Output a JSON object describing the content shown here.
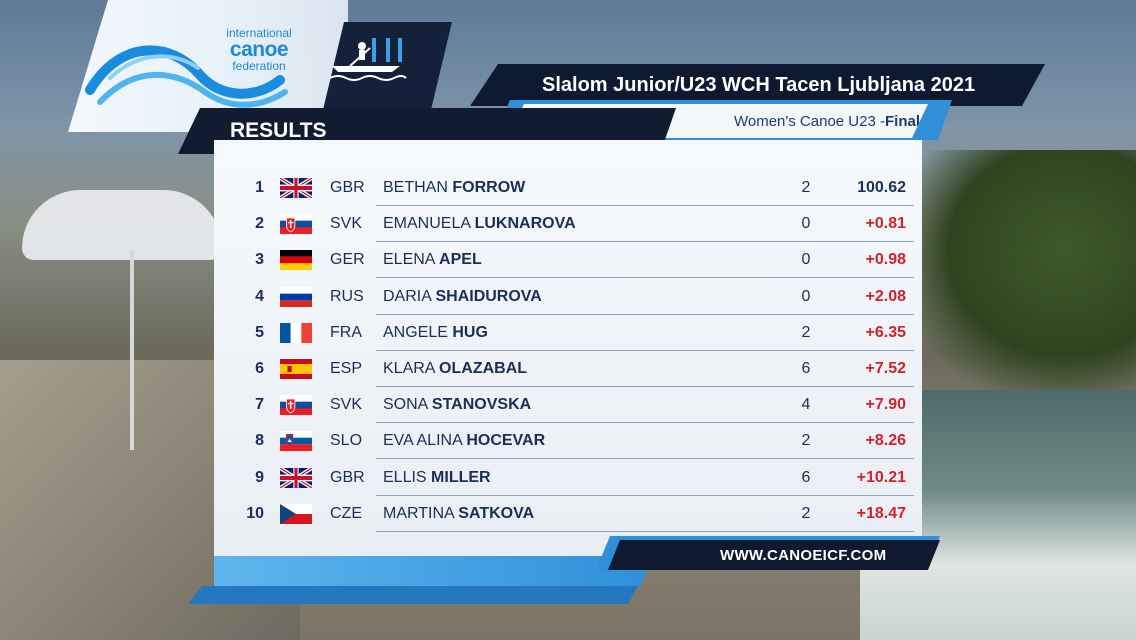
{
  "header": {
    "logo": {
      "line1": "international",
      "line2": "canoe",
      "line3": "federation"
    },
    "discipline_icon": "canoe-slalom-icon",
    "event_title": "Slalom Junior/U23 WCH Tacen Ljubljana 2021",
    "category": "Women's Canoe U23 - ",
    "phase": "Final",
    "results_label": "RESULTS"
  },
  "results": [
    {
      "rank": "1",
      "flag": "gb",
      "nat": "GBR",
      "first": "BETHAN",
      "last": "FORROW",
      "pen": "2",
      "time": "100.62"
    },
    {
      "rank": "2",
      "flag": "sk",
      "nat": "SVK",
      "first": "EMANUELA",
      "last": "LUKNAROVA",
      "pen": "0",
      "time": "+0.81"
    },
    {
      "rank": "3",
      "flag": "de",
      "nat": "GER",
      "first": "ELENA",
      "last": "APEL",
      "pen": "0",
      "time": "+0.98"
    },
    {
      "rank": "4",
      "flag": "ru",
      "nat": "RUS",
      "first": "DARIA",
      "last": "SHAIDUROVA",
      "pen": "0",
      "time": "+2.08"
    },
    {
      "rank": "5",
      "flag": "fr",
      "nat": "FRA",
      "first": "ANGELE",
      "last": "HUG",
      "pen": "2",
      "time": "+6.35"
    },
    {
      "rank": "6",
      "flag": "es",
      "nat": "ESP",
      "first": "KLARA",
      "last": "OLAZABAL",
      "pen": "6",
      "time": "+7.52"
    },
    {
      "rank": "7",
      "flag": "sk",
      "nat": "SVK",
      "first": "SONA",
      "last": "STANOVSKA",
      "pen": "4",
      "time": "+7.90"
    },
    {
      "rank": "8",
      "flag": "si",
      "nat": "SLO",
      "first": "EVA ALINA",
      "last": "HOCEVAR",
      "pen": "2",
      "time": "+8.26"
    },
    {
      "rank": "9",
      "flag": "gb",
      "nat": "GBR",
      "first": "ELLIS",
      "last": "MILLER",
      "pen": "6",
      "time": "+10.21"
    },
    {
      "rank": "10",
      "flag": "cz",
      "nat": "CZE",
      "first": "MARTINA",
      "last": "SATKOVA",
      "pen": "2",
      "time": "+18.47"
    }
  ],
  "footer": {
    "url": "WWW.CANOEICF.COM"
  },
  "colors": {
    "navy": "#0f1a30",
    "accent_blue": "#2f8fd8",
    "time_red": "#d0222a",
    "text_navy": "#1c2d57"
  }
}
